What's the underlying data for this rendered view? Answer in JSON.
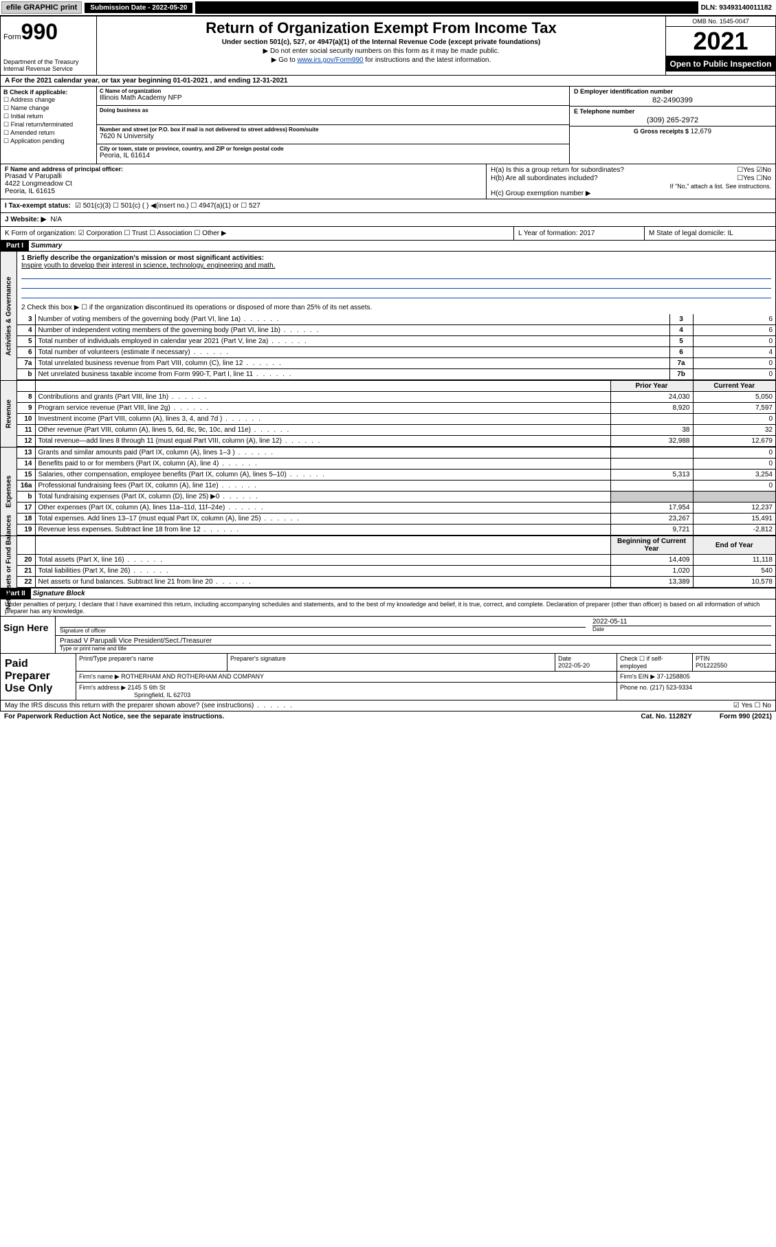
{
  "topbar": {
    "efile": "efile GRAPHIC print",
    "submission_label": "Submission Date - 2022-05-20",
    "dln": "DLN: 93493140011182"
  },
  "header": {
    "form_prefix": "Form",
    "form_num": "990",
    "dept": "Department of the Treasury Internal Revenue Service",
    "title": "Return of Organization Exempt From Income Tax",
    "sub1": "Under section 501(c), 527, or 4947(a)(1) of the Internal Revenue Code (except private foundations)",
    "sub2": "▶ Do not enter social security numbers on this form as it may be made public.",
    "sub3_pre": "▶ Go to ",
    "sub3_link": "www.irs.gov/Form990",
    "sub3_post": " for instructions and the latest information.",
    "omb": "OMB No. 1545-0047",
    "year": "2021",
    "open": "Open to Public Inspection"
  },
  "rowA": "A For the 2021 calendar year, or tax year beginning 01-01-2021   , and ending 12-31-2021",
  "colB": {
    "hdr": "B Check if applicable:",
    "items": [
      "☐ Address change",
      "☐ Name change",
      "☐ Initial return",
      "☐ Final return/terminated",
      "☐ Amended return",
      "☐ Application pending"
    ]
  },
  "colC": {
    "name_lbl": "C Name of organization",
    "name": "Illinois Math Academy NFP",
    "dba_lbl": "Doing business as",
    "dba": "",
    "addr_lbl": "Number and street (or P.O. box if mail is not delivered to street address)         Room/suite",
    "addr": "7620 N University",
    "city_lbl": "City or town, state or province, country, and ZIP or foreign postal code",
    "city": "Peoria, IL  61614"
  },
  "colD": {
    "ein_lbl": "D Employer identification number",
    "ein": "82-2490399",
    "tel_lbl": "E Telephone number",
    "tel": "(309) 265-2972",
    "gross_lbl": "G Gross receipts $ ",
    "gross": "12,679"
  },
  "rowF": {
    "lbl": "F Name and address of principal officer:",
    "name": "Prasad V Parupalli",
    "addr1": "4422 Longmeadow Ct",
    "addr2": "Peoria, IL  61615",
    "ha": "H(a)  Is this a group return for subordinates?",
    "ha_ans": "☐Yes ☑No",
    "hb": "H(b)  Are all subordinates included?",
    "hb_ans": "☐Yes ☐No",
    "hb_note": "If \"No,\" attach a list. See instructions.",
    "hc": "H(c)  Group exemption number ▶"
  },
  "rowI": {
    "lbl": "I   Tax-exempt status:",
    "opts": "☑ 501(c)(3)   ☐ 501(c) (  ) ◀(insert no.)   ☐ 4947(a)(1) or  ☐ 527"
  },
  "rowJ": {
    "lbl": "J   Website: ▶",
    "val": "N/A"
  },
  "rowK": {
    "k": "K Form of organization:  ☑ Corporation  ☐ Trust  ☐ Association  ☐ Other ▶",
    "l": "L Year of formation: 2017",
    "m": "M State of legal domicile: IL"
  },
  "part1": {
    "hdr": "Part I",
    "title": "Summary"
  },
  "mission": {
    "q1": "1  Briefly describe the organization's mission or most significant activities:",
    "text": "Inspire youth to develop their interest in science, technology, engineering and math.",
    "q2": "2   Check this box ▶ ☐  if the organization discontinued its operations or disposed of more than 25% of its net assets."
  },
  "gov_rows": [
    {
      "n": "3",
      "t": "Number of voting members of the governing body (Part VI, line 1a)",
      "box": "3",
      "v": "6"
    },
    {
      "n": "4",
      "t": "Number of independent voting members of the governing body (Part VI, line 1b)",
      "box": "4",
      "v": "6"
    },
    {
      "n": "5",
      "t": "Total number of individuals employed in calendar year 2021 (Part V, line 2a)",
      "box": "5",
      "v": "0"
    },
    {
      "n": "6",
      "t": "Total number of volunteers (estimate if necessary)",
      "box": "6",
      "v": "4"
    },
    {
      "n": "7a",
      "t": "Total unrelated business revenue from Part VIII, column (C), line 12",
      "box": "7a",
      "v": "0"
    },
    {
      "n": "b",
      "t": "Net unrelated business taxable income from Form 990-T, Part I, line 11",
      "box": "7b",
      "v": "0"
    }
  ],
  "rev_hdr": {
    "prior": "Prior Year",
    "curr": "Current Year"
  },
  "rev_rows": [
    {
      "n": "8",
      "t": "Contributions and grants (Part VIII, line 1h)",
      "p": "24,030",
      "c": "5,050"
    },
    {
      "n": "9",
      "t": "Program service revenue (Part VIII, line 2g)",
      "p": "8,920",
      "c": "7,597"
    },
    {
      "n": "10",
      "t": "Investment income (Part VIII, column (A), lines 3, 4, and 7d )",
      "p": "",
      "c": "0"
    },
    {
      "n": "11",
      "t": "Other revenue (Part VIII, column (A), lines 5, 6d, 8c, 9c, 10c, and 11e)",
      "p": "38",
      "c": "32"
    },
    {
      "n": "12",
      "t": "Total revenue—add lines 8 through 11 (must equal Part VIII, column (A), line 12)",
      "p": "32,988",
      "c": "12,679"
    }
  ],
  "exp_rows": [
    {
      "n": "13",
      "t": "Grants and similar amounts paid (Part IX, column (A), lines 1–3 )",
      "p": "",
      "c": "0"
    },
    {
      "n": "14",
      "t": "Benefits paid to or for members (Part IX, column (A), line 4)",
      "p": "",
      "c": "0"
    },
    {
      "n": "15",
      "t": "Salaries, other compensation, employee benefits (Part IX, column (A), lines 5–10)",
      "p": "5,313",
      "c": "3,254"
    },
    {
      "n": "16a",
      "t": "Professional fundraising fees (Part IX, column (A), line 11e)",
      "p": "",
      "c": "0"
    },
    {
      "n": "b",
      "t": "Total fundraising expenses (Part IX, column (D), line 25) ▶0",
      "p": "—",
      "c": "—"
    },
    {
      "n": "17",
      "t": "Other expenses (Part IX, column (A), lines 11a–11d, 11f–24e)",
      "p": "17,954",
      "c": "12,237"
    },
    {
      "n": "18",
      "t": "Total expenses. Add lines 13–17 (must equal Part IX, column (A), line 25)",
      "p": "23,267",
      "c": "15,491"
    },
    {
      "n": "19",
      "t": "Revenue less expenses. Subtract line 18 from line 12",
      "p": "9,721",
      "c": "-2,812"
    }
  ],
  "na_hdr": {
    "beg": "Beginning of Current Year",
    "end": "End of Year"
  },
  "na_rows": [
    {
      "n": "20",
      "t": "Total assets (Part X, line 16)",
      "p": "14,409",
      "c": "11,118"
    },
    {
      "n": "21",
      "t": "Total liabilities (Part X, line 26)",
      "p": "1,020",
      "c": "540"
    },
    {
      "n": "22",
      "t": "Net assets or fund balances. Subtract line 21 from line 20",
      "p": "13,389",
      "c": "10,578"
    }
  ],
  "part2": {
    "hdr": "Part II",
    "title": "Signature Block"
  },
  "decl": "Under penalties of perjury, I declare that I have examined this return, including accompanying schedules and statements, and to the best of my knowledge and belief, it is true, correct, and complete. Declaration of preparer (other than officer) is based on all information of which preparer has any knowledge.",
  "sign": {
    "lbl": "Sign Here",
    "sig_of": "Signature of officer",
    "date_lbl": "Date",
    "date": "2022-05-11",
    "name": "Prasad V Parupalli  Vice President/Sect./Treasurer",
    "name_lbl": "Type or print name and title"
  },
  "prep": {
    "lbl": "Paid Preparer Use Only",
    "h1": "Print/Type preparer's name",
    "h2": "Preparer's signature",
    "h3": "Date",
    "h3v": "2022-05-20",
    "h4": "Check ☐ if self-employed",
    "h5": "PTIN",
    "h5v": "P01222550",
    "firm_lbl": "Firm's name    ▶",
    "firm": "ROTHERHAM AND ROTHERHAM AND COMPANY",
    "ein_lbl": "Firm's EIN ▶",
    "ein": "37-1258805",
    "addr_lbl": "Firm's address ▶",
    "addr1": "2145 S 6th St",
    "addr2": "Springfield, IL  62703",
    "phone_lbl": "Phone no.",
    "phone": "(217) 523-9334"
  },
  "footer": {
    "q": "May the IRS discuss this return with the preparer shown above? (see instructions)",
    "ans": "☑ Yes  ☐ No"
  },
  "pra": {
    "l": "For Paperwork Reduction Act Notice, see the separate instructions.",
    "cat": "Cat. No. 11282Y",
    "form": "Form 990 (2021)"
  },
  "sidebars": {
    "gov": "Activities & Governance",
    "rev": "Revenue",
    "exp": "Expenses",
    "na": "Net Assets or Fund Balances"
  }
}
